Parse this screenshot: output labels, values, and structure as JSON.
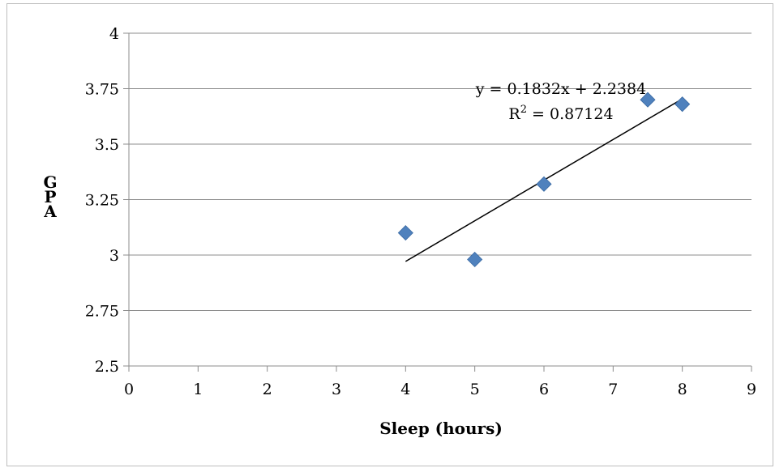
{
  "chart_data": {
    "type": "scatter",
    "title": "",
    "xlabel": "Sleep (hours)",
    "ylabel": "GPA",
    "xlim": [
      0,
      9
    ],
    "ylim": [
      2.5,
      4
    ],
    "x_ticks": [
      "0",
      "1",
      "2",
      "3",
      "4",
      "5",
      "6",
      "7",
      "8",
      "9"
    ],
    "y_ticks": [
      "2.5",
      "2.75",
      "3",
      "3.25",
      "3.5",
      "3.75",
      "4"
    ],
    "grid": "horizontal",
    "legend": "none",
    "marker_color": "#4F81BD",
    "points": [
      {
        "x": 4,
        "y": 3.1
      },
      {
        "x": 5,
        "y": 2.98
      },
      {
        "x": 6,
        "y": 3.32
      },
      {
        "x": 7.5,
        "y": 3.7
      },
      {
        "x": 8,
        "y": 3.68
      }
    ],
    "trendline": {
      "type": "linear",
      "x_range": [
        4,
        8
      ],
      "slope": 0.1832,
      "intercept": 2.2384,
      "equation_label": "y = 0.1832x + 2.2384",
      "r2_prefix": "R",
      "r2_superscript": "2",
      "r2_value_text": " = 0.87124"
    }
  }
}
